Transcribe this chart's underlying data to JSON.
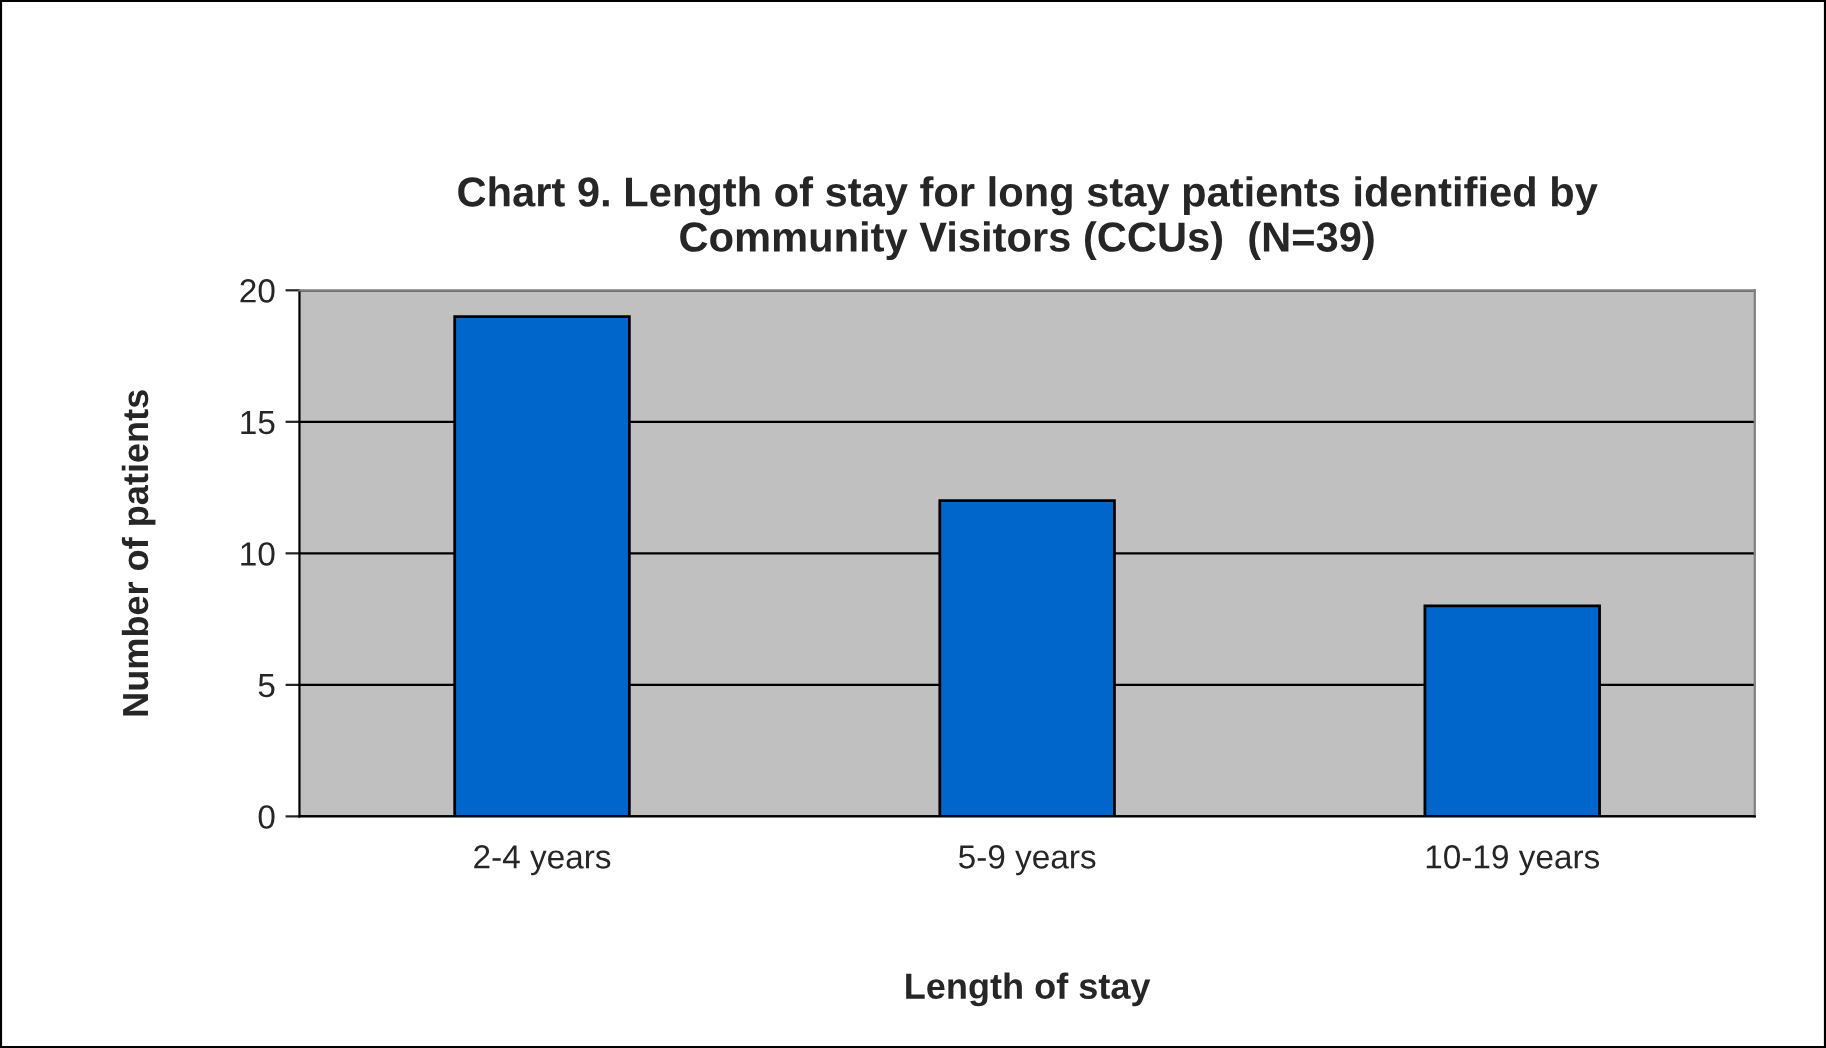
{
  "chart_data": {
    "type": "bar",
    "title": "Chart 9. Length of stay for long stay patients identified by\nCommunity Visitors (CCUs)  (N=39)",
    "xlabel": "Length of stay",
    "ylabel": "Number of patients",
    "categories": [
      "2-4 years",
      "5-9 years",
      "10-19 years"
    ],
    "values": [
      19,
      12,
      8
    ],
    "color": "#0066cc",
    "ylim": [
      0,
      20
    ],
    "yticks": [
      0,
      5,
      10,
      15,
      20
    ],
    "grid": "y",
    "legend": false
  }
}
